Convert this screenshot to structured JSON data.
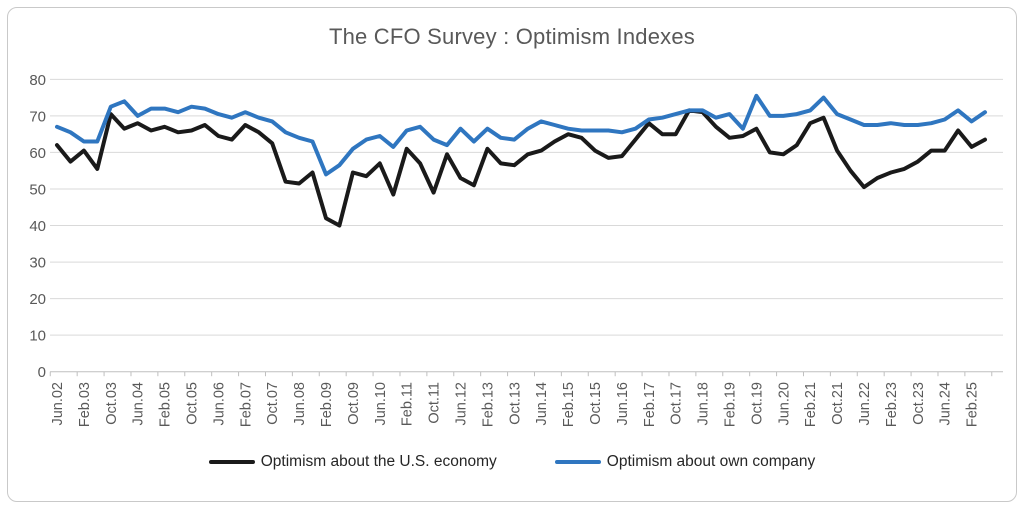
{
  "title": "The CFO Survey : Optimism Indexes",
  "legend": [
    {
      "label": "Optimism about the U.S. economy",
      "color": "#1a1a1a"
    },
    {
      "label": "Optimism about own company",
      "color": "#2f76c0"
    }
  ],
  "chart_data": {
    "type": "line",
    "title": "The CFO Survey : Optimism Indexes",
    "xlabel": "",
    "ylabel": "",
    "ylim": [
      0,
      80
    ],
    "ytick_step": 10,
    "grid": true,
    "legend_position": "bottom",
    "x_tick_labels": [
      "Jun.02",
      "Feb.03",
      "Oct.03",
      "Jun.04",
      "Feb.05",
      "Oct.05",
      "Jun.06",
      "Feb.07",
      "Oct.07",
      "Jun.08",
      "Feb.09",
      "Oct.09",
      "Jun.10",
      "Feb.11",
      "Oct.11",
      "Jun.12",
      "Feb.13",
      "Oct.13",
      "Jun.14",
      "Feb.15",
      "Oct.15",
      "Jun.16",
      "Feb.17",
      "Oct.17",
      "Jun.18",
      "Feb.19",
      "Oct.19",
      "Jun.20",
      "Feb.21",
      "Oct.21",
      "Jun.22",
      "Feb.23",
      "Oct.23",
      "Jun.24",
      "Feb.25"
    ],
    "categories": [
      "Jun.02",
      "Oct.02",
      "Feb.03",
      "Jun.03",
      "Oct.03",
      "Feb.04",
      "Jun.04",
      "Oct.04",
      "Feb.05",
      "Jun.05",
      "Oct.05",
      "Feb.06",
      "Jun.06",
      "Oct.06",
      "Feb.07",
      "Jun.07",
      "Oct.07",
      "Feb.08",
      "Jun.08",
      "Oct.08",
      "Feb.09",
      "Jun.09",
      "Oct.09",
      "Feb.10",
      "Jun.10",
      "Oct.10",
      "Feb.11",
      "Jun.11",
      "Oct.11",
      "Feb.12",
      "Jun.12",
      "Oct.12",
      "Feb.13",
      "Jun.13",
      "Oct.13",
      "Feb.14",
      "Jun.14",
      "Oct.14",
      "Feb.15",
      "Jun.15",
      "Oct.15",
      "Feb.16",
      "Jun.16",
      "Oct.16",
      "Feb.17",
      "Jun.17",
      "Oct.17",
      "Feb.18",
      "Jun.18",
      "Oct.18",
      "Feb.19",
      "Jun.19",
      "Oct.19",
      "Feb.20",
      "Jun.20",
      "Oct.20",
      "Feb.21",
      "Jun.21",
      "Oct.21",
      "Feb.22",
      "Jun.22",
      "Oct.22",
      "Feb.23",
      "Jun.23",
      "Oct.23",
      "Feb.24",
      "Jun.24",
      "Oct.24",
      "Feb.25",
      "Jun.25"
    ],
    "series": [
      {
        "name": "Optimism about the U.S. economy",
        "color": "#1a1a1a",
        "values": [
          62,
          57.5,
          60.5,
          55.5,
          70.5,
          66.5,
          68,
          66,
          67,
          65.5,
          66,
          67.5,
          64.5,
          63.5,
          67.5,
          65.5,
          62.5,
          52,
          51.5,
          54.5,
          42,
          40,
          54.5,
          53.5,
          57,
          48.5,
          61,
          57,
          49,
          59.5,
          53,
          51,
          61,
          57,
          56.5,
          59.5,
          60.5,
          63,
          65,
          64,
          60.5,
          58.5,
          59,
          63.5,
          68,
          65,
          65,
          71.5,
          71,
          67,
          64,
          64.5,
          66.5,
          60,
          59.5,
          62,
          68,
          69.5,
          60.5,
          55,
          50.5,
          53,
          54.5,
          55.5,
          57.5,
          60.5,
          60.5,
          66,
          61.5,
          63.5
        ]
      },
      {
        "name": "Optimism about own company",
        "color": "#2f76c0",
        "values": [
          67,
          65.5,
          63,
          63,
          72.5,
          74,
          70,
          72,
          72,
          71,
          72.5,
          72,
          70.5,
          69.5,
          71,
          69.5,
          68.5,
          65.5,
          64,
          63,
          54,
          56.5,
          61,
          63.5,
          64.5,
          61.5,
          66,
          67,
          63.5,
          62,
          66.5,
          63,
          66.5,
          64,
          63.5,
          66.5,
          68.5,
          67.5,
          66.5,
          66,
          66,
          66,
          65.5,
          66.5,
          69,
          69.5,
          70.5,
          71.5,
          71.5,
          69.5,
          70.5,
          66.5,
          75.5,
          70,
          70,
          70.5,
          71.5,
          75,
          70.5,
          69,
          67.5,
          67.5,
          68,
          67.5,
          67.5,
          68,
          69,
          71.5,
          68.5,
          71
        ]
      }
    ]
  }
}
